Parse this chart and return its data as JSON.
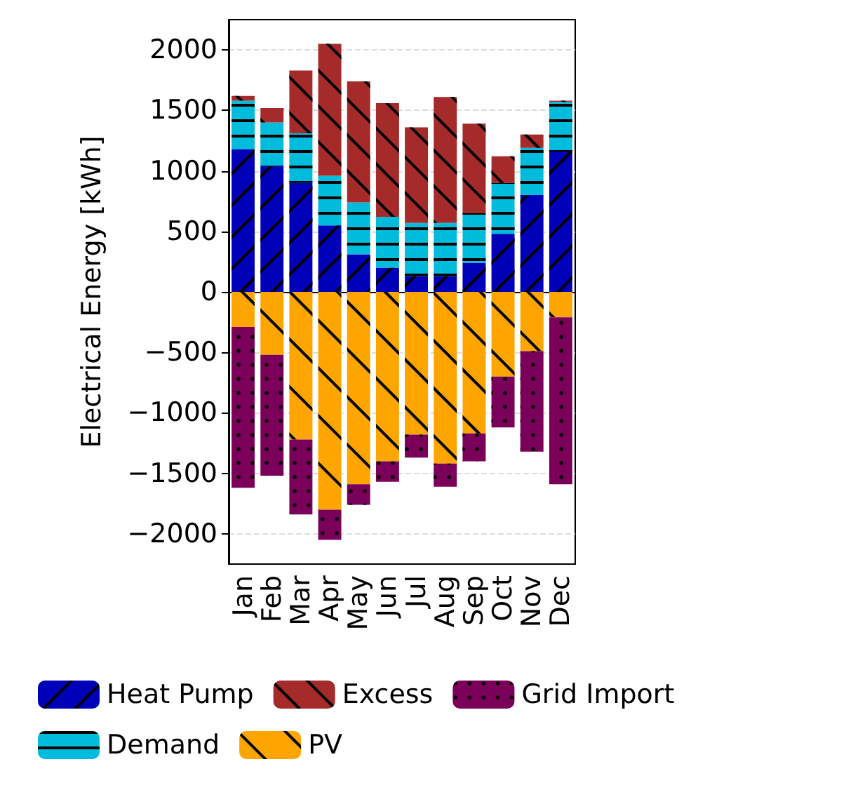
{
  "chart_data": {
    "type": "bar",
    "stacked": true,
    "ylabel": "Electrical Energy [kWh]",
    "categories": [
      "Jan",
      "Feb",
      "Mar",
      "Apr",
      "May",
      "Jun",
      "Jul",
      "Aug",
      "Sep",
      "Oct",
      "Nov",
      "Dec"
    ],
    "series": [
      {
        "name": "Heat Pump",
        "color": "#0000b8",
        "values": [
          1180,
          1040,
          900,
          550,
          310,
          200,
          130,
          130,
          240,
          480,
          800,
          1160
        ]
      },
      {
        "name": "Demand",
        "color": "#00bcdc",
        "values": [
          400,
          360,
          410,
          410,
          430,
          420,
          440,
          440,
          410,
          420,
          390,
          410
        ]
      },
      {
        "name": "Excess",
        "color": "#a52a2a",
        "values": [
          40,
          120,
          520,
          1090,
          1000,
          940,
          790,
          1040,
          740,
          220,
          110,
          10
        ]
      },
      {
        "name": "PV",
        "color": "#ffa500",
        "values": [
          -290,
          -520,
          -1220,
          -1800,
          -1590,
          -1400,
          -1180,
          -1420,
          -1170,
          -700,
          -490,
          -210
        ]
      },
      {
        "name": "Grid Import",
        "color": "#7a005a",
        "values": [
          -1330,
          -1000,
          -620,
          -250,
          -170,
          -170,
          -190,
          -190,
          -230,
          -420,
          -830,
          -1380
        ]
      }
    ],
    "ylim": [
      -2250,
      2250
    ],
    "yticks": [
      -2000,
      -1500,
      -1000,
      -500,
      0,
      500,
      1000,
      1500,
      2000
    ],
    "grid": "y",
    "legend": "bottom"
  }
}
